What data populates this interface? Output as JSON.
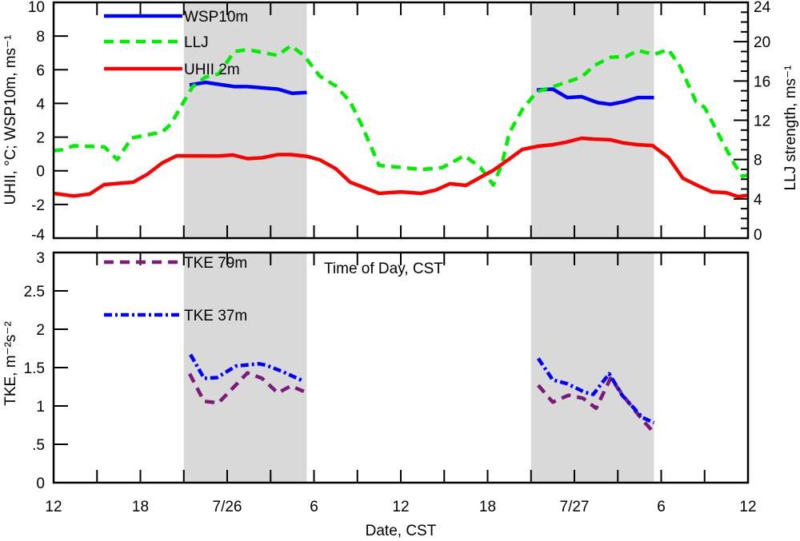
{
  "chart_data": [
    {
      "type": "line",
      "panel": "top",
      "ylabel": "UHII, °C; WSP10m, ms⁻¹",
      "ylabel_right": "LLJ strength, ms⁻¹",
      "ylim": [
        -4,
        10
      ],
      "ylim_right": [
        0,
        24
      ],
      "yticks": [
        "-4",
        "-2",
        "0",
        "2",
        "4",
        "6",
        "8",
        "10"
      ],
      "yticks_right": [
        "0",
        "4",
        "8",
        "12",
        "16",
        "20",
        "24"
      ],
      "x_unit": "hours since 12 CST 7/25",
      "xlim": [
        0,
        48
      ],
      "shaded_nighttime_hours": [
        [
          9,
          17.5
        ],
        [
          33,
          41.5
        ]
      ],
      "series": [
        {
          "name": "WSP10m",
          "axis": "left",
          "color": "#0000ff",
          "style": "solid",
          "points": [
            [
              9.4,
              5.1
            ],
            [
              10.5,
              5.25
            ],
            [
              12.5,
              5.0
            ],
            [
              13.4,
              5.0
            ],
            [
              15.5,
              4.85
            ],
            [
              16.5,
              4.6
            ],
            [
              17.5,
              4.65
            ],
            [
              33.4,
              4.8
            ],
            [
              34.5,
              4.85
            ],
            [
              35.5,
              4.35
            ],
            [
              36.5,
              4.4
            ],
            [
              37.6,
              4.05
            ],
            [
              38.5,
              3.95
            ],
            [
              39.4,
              4.1
            ],
            [
              40.4,
              4.35
            ],
            [
              41.5,
              4.35
            ]
          ]
        },
        {
          "name": "LLJ",
          "axis": "right",
          "color": "#00ee00",
          "style": "dashed",
          "points": [
            [
              0,
              8.9
            ],
            [
              0.6,
              9.0
            ],
            [
              1.4,
              9.4
            ],
            [
              3.5,
              9.3
            ],
            [
              4.4,
              8.0
            ],
            [
              5.4,
              10.2
            ],
            [
              7.5,
              10.8
            ],
            [
              8.1,
              11.6
            ],
            [
              9.6,
              15.4
            ],
            [
              10.5,
              16.4
            ],
            [
              11.4,
              16.7
            ],
            [
              12.5,
              19.0
            ],
            [
              13.4,
              19.2
            ],
            [
              15.5,
              18.6
            ],
            [
              16.4,
              19.6
            ],
            [
              17.3,
              18.6
            ],
            [
              18.4,
              16.5
            ],
            [
              19.5,
              15.5
            ],
            [
              20.5,
              13.9
            ],
            [
              21.3,
              11.5
            ],
            [
              22.5,
              7.4
            ],
            [
              24,
              7.2
            ],
            [
              25.4,
              7.0
            ],
            [
              26.4,
              7.1
            ],
            [
              26.9,
              7.2
            ],
            [
              28.4,
              8.4
            ],
            [
              29.5,
              7.2
            ],
            [
              30.4,
              5.4
            ],
            [
              31,
              7.6
            ],
            [
              31.5,
              10.7
            ],
            [
              32.4,
              13.1
            ],
            [
              33.4,
              14.9
            ],
            [
              34.3,
              15.3
            ],
            [
              36.5,
              16.4
            ],
            [
              37.4,
              17.6
            ],
            [
              38.5,
              18.4
            ],
            [
              39.6,
              18.5
            ],
            [
              40.4,
              19.1
            ],
            [
              41.5,
              18.7
            ],
            [
              42.5,
              19.2
            ],
            [
              43.3,
              17.5
            ],
            [
              44.4,
              13.9
            ],
            [
              45,
              13.3
            ],
            [
              46.1,
              10.2
            ],
            [
              47,
              7.7
            ],
            [
              47.6,
              6.3
            ],
            [
              48,
              6.4
            ]
          ]
        },
        {
          "name": "UHII 2m",
          "axis": "left",
          "color": "#ff0000",
          "style": "solid",
          "points": [
            [
              0,
              -1.34
            ],
            [
              1.4,
              -1.5
            ],
            [
              2.5,
              -1.38
            ],
            [
              3.5,
              -0.82
            ],
            [
              5.5,
              -0.68
            ],
            [
              6.5,
              -0.2
            ],
            [
              7.5,
              0.46
            ],
            [
              8.5,
              0.89
            ],
            [
              11.4,
              0.88
            ],
            [
              12.4,
              0.94
            ],
            [
              13.4,
              0.72
            ],
            [
              14.4,
              0.77
            ],
            [
              15.5,
              0.96
            ],
            [
              16.4,
              0.96
            ],
            [
              17.5,
              0.86
            ],
            [
              18.4,
              0.65
            ],
            [
              19.5,
              0.13
            ],
            [
              20.5,
              -0.68
            ],
            [
              22.5,
              -1.34
            ],
            [
              24,
              -1.25
            ],
            [
              25.4,
              -1.34
            ],
            [
              26.4,
              -1.15
            ],
            [
              27.4,
              -0.77
            ],
            [
              28.5,
              -0.87
            ],
            [
              29.5,
              -0.39
            ],
            [
              30.4,
              0.03
            ],
            [
              31.5,
              0.7
            ],
            [
              32.4,
              1.27
            ],
            [
              33.5,
              1.46
            ],
            [
              34.5,
              1.55
            ],
            [
              35.4,
              1.69
            ],
            [
              36.5,
              1.93
            ],
            [
              37.4,
              1.88
            ],
            [
              38.5,
              1.84
            ],
            [
              39.4,
              1.65
            ],
            [
              40.4,
              1.55
            ],
            [
              41.4,
              1.5
            ],
            [
              42.5,
              0.79
            ],
            [
              43.5,
              -0.44
            ],
            [
              44.5,
              -0.87
            ],
            [
              45.5,
              -1.25
            ],
            [
              46.5,
              -1.3
            ],
            [
              47.3,
              -1.53
            ],
            [
              48,
              -1.46
            ]
          ]
        }
      ]
    },
    {
      "type": "line",
      "panel": "bottom",
      "ylabel": "TKE, m⁻²s⁻²",
      "xlabel": "Date, CST",
      "annotation": "Time of Day, CST",
      "ylim": [
        0,
        3
      ],
      "yticks": [
        "0",
        ".5",
        "1",
        "1.5",
        "2",
        "2.5",
        "3"
      ],
      "xlim": [
        0,
        48
      ],
      "xtick_labels": [
        "12",
        "18",
        "7/26",
        "6",
        "12",
        "18",
        "7/27",
        "6",
        "12"
      ],
      "shaded_nighttime_hours": [
        [
          9,
          17.5
        ],
        [
          33,
          41.5
        ]
      ],
      "series": [
        {
          "name": "TKE 79m",
          "color": "#7b1a7b",
          "style": "dashed",
          "points": [
            [
              9.4,
              1.42
            ],
            [
              10.4,
              1.06
            ],
            [
              11.4,
              1.04
            ],
            [
              13.4,
              1.43
            ],
            [
              14.4,
              1.36
            ],
            [
              15.5,
              1.17
            ],
            [
              16.4,
              1.26
            ],
            [
              17.3,
              1.19
            ],
            [
              33.5,
              1.27
            ],
            [
              34.5,
              1.05
            ],
            [
              35.6,
              1.14
            ],
            [
              36.6,
              1.1
            ],
            [
              37.5,
              0.97
            ],
            [
              38.5,
              1.36
            ],
            [
              39.6,
              1.08
            ],
            [
              40.7,
              0.82
            ],
            [
              41.5,
              0.65
            ]
          ]
        },
        {
          "name": "TKE 37m",
          "color": "#0000ff",
          "style": "dashdot",
          "points": [
            [
              9.46,
              1.67
            ],
            [
              10.4,
              1.36
            ],
            [
              11.3,
              1.37
            ],
            [
              12.6,
              1.52
            ],
            [
              14.2,
              1.55
            ],
            [
              14.7,
              1.53
            ],
            [
              15.8,
              1.45
            ],
            [
              17.2,
              1.33
            ],
            [
              33.5,
              1.62
            ],
            [
              34.5,
              1.34
            ],
            [
              35.5,
              1.29
            ],
            [
              36.7,
              1.18
            ],
            [
              37.3,
              1.15
            ],
            [
              38.4,
              1.42
            ],
            [
              39.3,
              1.14
            ],
            [
              40.7,
              0.85
            ],
            [
              41.5,
              0.78
            ]
          ]
        }
      ]
    }
  ]
}
